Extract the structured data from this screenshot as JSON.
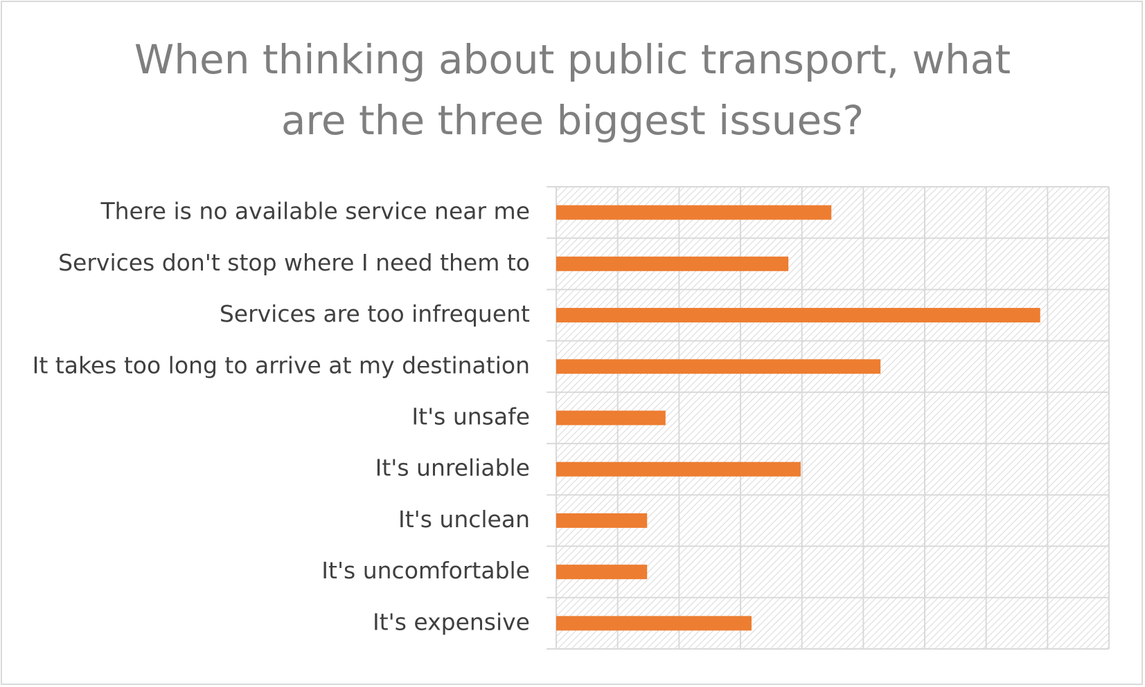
{
  "title_lines": [
    "When thinking about public transport, what",
    "are the three biggest issues?"
  ],
  "colors": {
    "bar": "#ed7d31",
    "grid": "#d9d9d9",
    "title": "#7f7f7f",
    "label": "#404040",
    "plot_hatch": "#d9d9d9"
  },
  "chart_data": {
    "type": "bar",
    "orientation": "horizontal",
    "title": "When thinking about public transport, what are the three biggest issues?",
    "categories": [
      "There is no available service near me",
      "Services don't stop where I need them to",
      "Services are too infrequent",
      "It takes too long to arrive at my destination",
      "It's unsafe",
      "It's unreliable",
      "It's unclean",
      "It's uncomfortable",
      "It's expensive"
    ],
    "values": [
      4.48,
      3.78,
      7.88,
      5.28,
      1.78,
      3.98,
      1.48,
      1.48,
      3.18
    ],
    "xlim": [
      0,
      9
    ],
    "x_grid_step": 1,
    "grid": true,
    "x_tick_labels_visible": false,
    "legend": "none",
    "xlabel": "",
    "ylabel": ""
  }
}
